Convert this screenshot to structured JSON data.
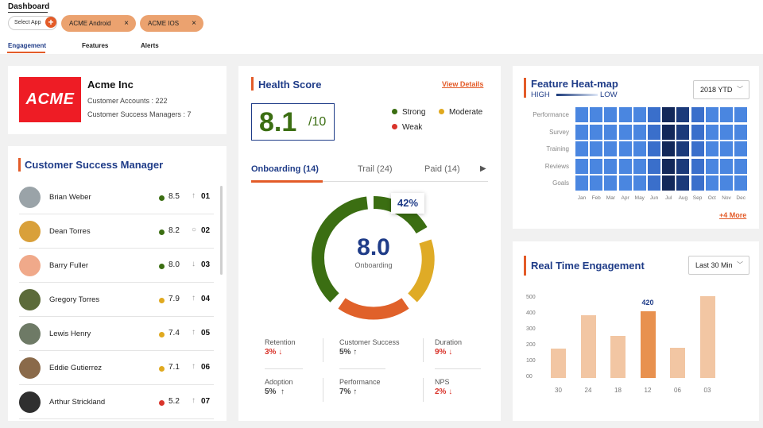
{
  "breadcrumb": "Dashboard",
  "app_selector": {
    "label": "Select App",
    "add": "+"
  },
  "chips": [
    {
      "label": "ACME Android",
      "remove": "×"
    },
    {
      "label": "ACME IOS",
      "remove": "×"
    }
  ],
  "nav_tabs": [
    {
      "label": "Engagement",
      "active": true
    },
    {
      "label": "Features",
      "active": false
    },
    {
      "label": "Alerts",
      "active": false
    }
  ],
  "company": {
    "logo_text": "ACME",
    "name": "Acme Inc",
    "accounts": "Customer Accounts : 222",
    "managers": "Customer Success Managers : 7"
  },
  "csm": {
    "title": "Customer Success Manager",
    "rows": [
      {
        "name": "Brian Weber",
        "status": "green",
        "score": "8.5",
        "trend": "↑",
        "rank": "01",
        "avatar": "#9aa3a8"
      },
      {
        "name": "Dean Torres",
        "status": "green",
        "score": "8.2",
        "trend": "○",
        "rank": "02",
        "avatar": "#d9a03a"
      },
      {
        "name": "Barry Fuller",
        "status": "green",
        "score": "8.0",
        "trend": "↓",
        "rank": "03",
        "avatar": "#f0a98a"
      },
      {
        "name": "Gregory Torres",
        "status": "yellow",
        "score": "7.9",
        "trend": "↑",
        "rank": "04",
        "avatar": "#5c6b3a"
      },
      {
        "name": "Lewis Henry",
        "status": "yellow",
        "score": "7.4",
        "trend": "↑",
        "rank": "05",
        "avatar": "#6e7a66"
      },
      {
        "name": "Eddie Gutierrez",
        "status": "yellow",
        "score": "7.1",
        "trend": "↑",
        "rank": "06",
        "avatar": "#8a6a4a"
      },
      {
        "name": "Arthur Strickland",
        "status": "red",
        "score": "5.2",
        "trend": "↑",
        "rank": "07",
        "avatar": "#2f2f2f"
      }
    ]
  },
  "health": {
    "title": "Health Score",
    "view_details": "View Details",
    "score": "8.1",
    "of": "/10",
    "legend": [
      {
        "label": "Strong",
        "color": "#3b6e12"
      },
      {
        "label": "Moderate",
        "color": "#e0a91f"
      },
      {
        "label": "Weak",
        "color": "#d9342b"
      }
    ],
    "tabs": [
      {
        "label": "Onboarding (14)"
      },
      {
        "label": "Trail (24)"
      },
      {
        "label": "Paid (14)"
      }
    ],
    "next_arrow": "▶",
    "donut": {
      "value": "8.0",
      "caption": "Onboarding",
      "callout": "42%"
    },
    "metrics": [
      {
        "label": "Retention",
        "value": "3% ↓",
        "color": "#d9342b"
      },
      {
        "label": "Customer Success",
        "value": "5% ↑",
        "color": "#444"
      },
      {
        "label": "Duration",
        "value": "9% ↓",
        "color": "#d9342b"
      },
      {
        "label": "Adoption",
        "value": "5%  ↑",
        "color": "#444"
      },
      {
        "label": "Performance",
        "value": "7% ↑",
        "color": "#444"
      },
      {
        "label": "NPS",
        "value": "2% ↓",
        "color": "#d9342b"
      }
    ]
  },
  "heatmap": {
    "title": "Feature Heat-map",
    "high": "HIGH",
    "low": "LOW",
    "year_select": "2018 YTD",
    "rows": [
      "Performance",
      "Survey",
      "Training",
      "Reviews",
      "Goals"
    ],
    "months": [
      "Jan",
      "Feb",
      "Mar",
      "Apr",
      "May",
      "Jun",
      "Jul",
      "Aug",
      "Sep",
      "Oct",
      "Nov",
      "Dec"
    ],
    "more_link": "+4 More",
    "colors": {
      "normal": "#4a86e0",
      "medium": "#3a6fcb",
      "dark": "#1b3a7a",
      "darkest": "#12285a"
    }
  },
  "engagement": {
    "title": "Real Time Engagement",
    "range_select": "Last 30 Min",
    "colors": {
      "bar": "#f2c6a3",
      "highlight": "#e8914f"
    },
    "chart_data": {
      "type": "bar",
      "categories": [
        "30",
        "24",
        "18",
        "12",
        "06",
        "03"
      ],
      "values": [
        185,
        395,
        265,
        420,
        190,
        515
      ],
      "highlight_index": 3,
      "highlight_label": "420",
      "yticks": [
        "500",
        "400",
        "300",
        "200",
        "100",
        "00"
      ],
      "ylim": [
        0,
        550
      ]
    }
  }
}
